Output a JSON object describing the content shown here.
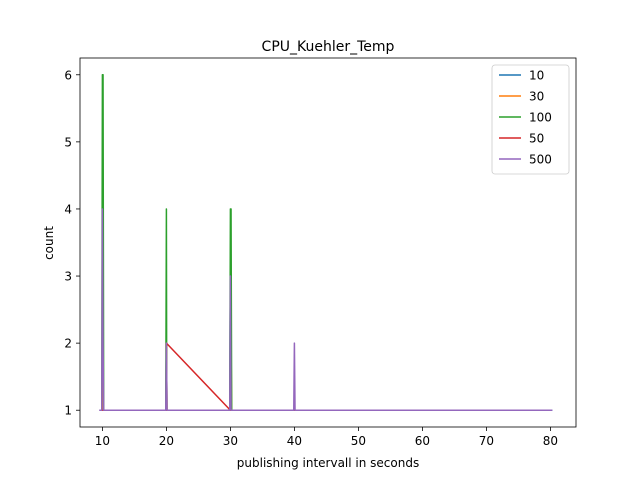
{
  "chart_data": {
    "type": "line",
    "title": "CPU_Kuehler_Temp",
    "xlabel": "publishing intervall in seconds",
    "ylabel": "count",
    "xlim": [
      6.5,
      84
    ],
    "ylim": [
      0.75,
      6.25
    ],
    "xticks": [
      10,
      20,
      30,
      40,
      50,
      60,
      70,
      80
    ],
    "yticks": [
      1,
      2,
      3,
      4,
      5,
      6
    ],
    "grid": false,
    "legend_position": "top-right",
    "series": [
      {
        "name": "10",
        "color": "#1f77b4",
        "points": [
          [
            9.8,
            1
          ],
          [
            10.0,
            1
          ],
          [
            10.05,
            4
          ],
          [
            10.1,
            2
          ],
          [
            10.15,
            1
          ],
          [
            19.9,
            1
          ],
          [
            20.0,
            2
          ],
          [
            20.1,
            1
          ],
          [
            29.9,
            1
          ],
          [
            30.0,
            3
          ],
          [
            30.1,
            1
          ],
          [
            40.0,
            1
          ],
          [
            50.0,
            1
          ],
          [
            60.0,
            1
          ],
          [
            70.0,
            1
          ],
          [
            80.3,
            1
          ]
        ]
      },
      {
        "name": "30",
        "color": "#ff7f0e",
        "points": [
          [
            9.8,
            1
          ],
          [
            10.0,
            1
          ],
          [
            10.05,
            3
          ],
          [
            10.1,
            1
          ],
          [
            19.9,
            1
          ],
          [
            20.0,
            2
          ],
          [
            20.1,
            1
          ],
          [
            30.0,
            1
          ],
          [
            30.1,
            2
          ],
          [
            30.2,
            1
          ],
          [
            40.0,
            1
          ],
          [
            50.0,
            1
          ],
          [
            60.0,
            1
          ],
          [
            70.0,
            1
          ],
          [
            80.2,
            1
          ]
        ]
      },
      {
        "name": "100",
        "color": "#2ca02c",
        "points": [
          [
            9.9,
            1
          ],
          [
            10.0,
            6
          ],
          [
            10.1,
            6
          ],
          [
            10.2,
            1
          ],
          [
            19.9,
            1
          ],
          [
            20.0,
            4
          ],
          [
            20.05,
            1
          ],
          [
            29.9,
            1
          ],
          [
            30.0,
            4
          ],
          [
            30.1,
            4
          ],
          [
            30.2,
            1
          ],
          [
            40.0,
            1
          ],
          [
            50.0,
            1
          ],
          [
            60.0,
            1
          ],
          [
            70.0,
            1
          ]
        ]
      },
      {
        "name": "50",
        "color": "#d62728",
        "points": [
          [
            10.0,
            1
          ],
          [
            20.0,
            1
          ],
          [
            20.0,
            2
          ],
          [
            30.0,
            1
          ],
          [
            40.0,
            1
          ],
          [
            50.0,
            1
          ]
        ]
      },
      {
        "name": "500",
        "color": "#9467bd",
        "points": [
          [
            9.5,
            1
          ],
          [
            9.9,
            1
          ],
          [
            10.0,
            4
          ],
          [
            10.1,
            2
          ],
          [
            10.2,
            1
          ],
          [
            19.9,
            1
          ],
          [
            20.0,
            2
          ],
          [
            20.1,
            1
          ],
          [
            29.9,
            1
          ],
          [
            30.0,
            3
          ],
          [
            30.1,
            1
          ],
          [
            39.9,
            1
          ],
          [
            40.0,
            2
          ],
          [
            40.1,
            1
          ],
          [
            50.0,
            1
          ],
          [
            60.0,
            1
          ],
          [
            70.0,
            1
          ],
          [
            80.3,
            1
          ]
        ]
      }
    ]
  }
}
